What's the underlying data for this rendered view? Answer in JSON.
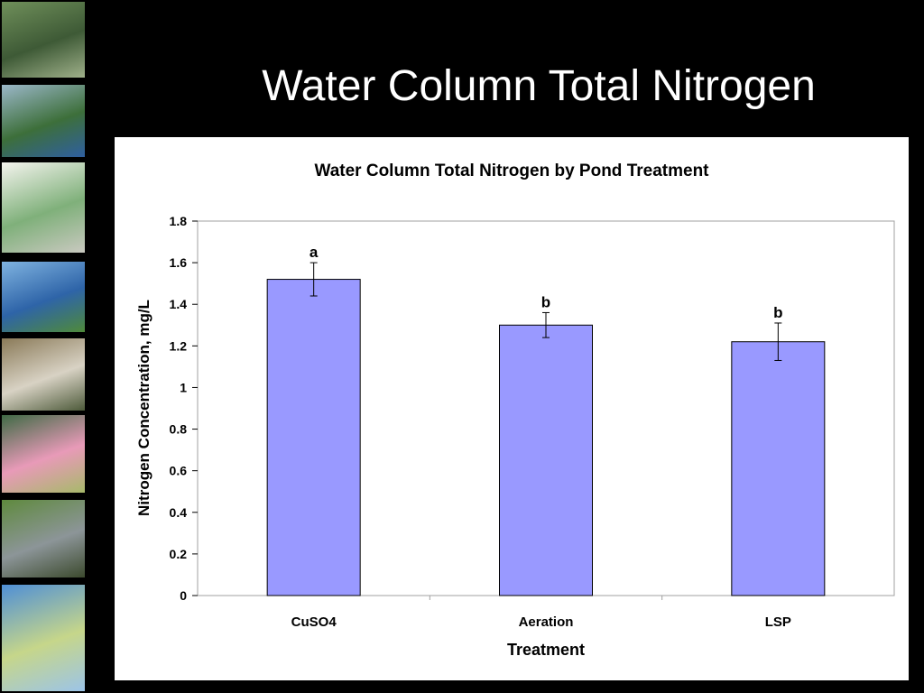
{
  "slide": {
    "title": "Water Column Total Nitrogen"
  },
  "thumbnails": [
    {
      "name": "algae-pond-photo",
      "colors": [
        "#6f8f5a",
        "#3e5a36",
        "#9fb08a"
      ]
    },
    {
      "name": "pond-shore-photo",
      "colors": [
        "#9bb7c9",
        "#3d6f3a",
        "#2f5fa0"
      ]
    },
    {
      "name": "site-map-thumbnail",
      "colors": [
        "#f4f4ee",
        "#7fb07a",
        "#c9c9c0"
      ]
    },
    {
      "name": "pond-landscape-photo",
      "colors": [
        "#7fb3e0",
        "#2e64a8",
        "#4f8a3a"
      ]
    },
    {
      "name": "field-sampling-photo",
      "colors": [
        "#8a7a58",
        "#d8d2c4",
        "#4d5a3a"
      ]
    },
    {
      "name": "water-lily-photo",
      "colors": [
        "#3f6a45",
        "#e89ab8",
        "#a7b96a"
      ]
    },
    {
      "name": "fish-on-grass-photo",
      "colors": [
        "#5f8a3e",
        "#8c9598",
        "#3c4a2e"
      ]
    },
    {
      "name": "water-sample-jar-photo",
      "colors": [
        "#4f8fd6",
        "#c6d68a",
        "#9cc4e8"
      ]
    }
  ],
  "chart_data": {
    "type": "bar",
    "title": "Water Column Total Nitrogen by Pond Treatment",
    "xlabel": "Treatment",
    "ylabel": "Nitrogen Concentration, mg/L",
    "categories": [
      "CuSO4",
      "Aeration",
      "LSP"
    ],
    "values": [
      1.52,
      1.3,
      1.22
    ],
    "errors": [
      0.08,
      0.06,
      0.09
    ],
    "significance_labels": [
      "a",
      "b",
      "b"
    ],
    "ylim": [
      0,
      1.8
    ],
    "yticks": [
      "0",
      "0.2",
      "0.4",
      "0.6",
      "0.8",
      "1",
      "1.2",
      "1.4",
      "1.6",
      "1.8"
    ],
    "bar_color": "#9999ff",
    "grid": false,
    "legend": "none"
  }
}
